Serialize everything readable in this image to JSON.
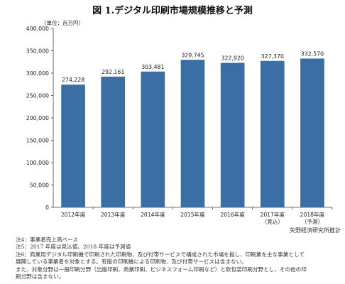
{
  "title": "図 1.デジタル印刷市場規模推移と予測",
  "unit_label": "（単位：百万円）",
  "chart_data": {
    "type": "bar",
    "categories": [
      "2012年度",
      "2013年度",
      "2014年度",
      "2015年度",
      "2016年度",
      "2017年度\n（見込）",
      "2018年度\n（予測）"
    ],
    "values": [
      274228,
      292161,
      303481,
      329745,
      322920,
      327370,
      332570
    ],
    "value_labels": [
      "274,228",
      "292,161",
      "303,481",
      "329,745",
      "322,920",
      "327,370",
      "332,570"
    ],
    "yticks": [
      "0",
      "50,000",
      "100,000",
      "150,000",
      "200,000",
      "250,000",
      "300,000",
      "350,000",
      "400,000"
    ],
    "ylim": [
      0,
      400000
    ],
    "grid": false,
    "bar_color": "#3a6ea5"
  },
  "source": "矢野経済研究所推計",
  "notes": [
    "注4：事業者売上高ベース",
    "注5：2017 年度は見込値、2018 年度は予測値",
    "注6：商業用デジタル印刷機で印刷された印刷物、及び付帯サービスで構成された市場を指し、印刷業を主な事業として",
    "展開している事業者を対象とする。有版の印刷機による印刷物、及び付帯サービスは含まない。",
    "また、対象分野は一般印刷分野（出版印刷、商業印刷、ビジネスフォーム印刷など）と軟包装印刷分野とし、その他の印",
    "刷分野は含まない。"
  ]
}
